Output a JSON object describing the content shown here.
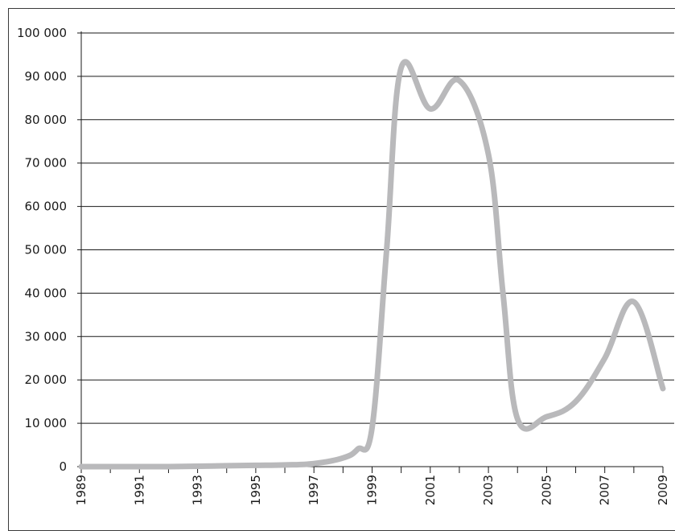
{
  "chart_data": {
    "type": "line",
    "title": "",
    "xlabel": "",
    "ylabel": "",
    "xlim": [
      1989,
      2009
    ],
    "ylim": [
      0,
      100000
    ],
    "grid": "horizontal",
    "legend": "none",
    "line_color": "#b9b9bb",
    "grid_color": "#1a1a1a",
    "y_ticks": [
      0,
      10000,
      20000,
      30000,
      40000,
      50000,
      60000,
      70000,
      80000,
      90000,
      100000
    ],
    "y_tick_labels": [
      "0",
      "10 000",
      "20 000",
      "30 000",
      "40 000",
      "50 000",
      "60 000",
      "70 000",
      "80 000",
      "90 000",
      "100 000"
    ],
    "x_ticks": [
      1989,
      1991,
      1993,
      1995,
      1997,
      1999,
      2001,
      2003,
      2005,
      2007,
      2009
    ],
    "x_tick_labels": [
      "1989",
      "1991",
      "1993",
      "1995",
      "1997",
      "1999",
      "2001",
      "2003",
      "2005",
      "2007",
      "2009"
    ],
    "x": [
      1989,
      1990,
      1991,
      1992,
      1993,
      1994,
      1995,
      1996,
      1997,
      1998,
      1998.5,
      1999,
      1999.5,
      2000,
      2001,
      2002,
      2003,
      2003.5,
      2004,
      2005,
      2006,
      2007,
      2008,
      2009
    ],
    "values": [
      0,
      0,
      0,
      0,
      100,
      200,
      300,
      400,
      700,
      2000,
      4000,
      9000,
      50000,
      92000,
      82500,
      89000,
      72000,
      40000,
      11000,
      11500,
      15000,
      25000,
      38000,
      18000
    ]
  }
}
